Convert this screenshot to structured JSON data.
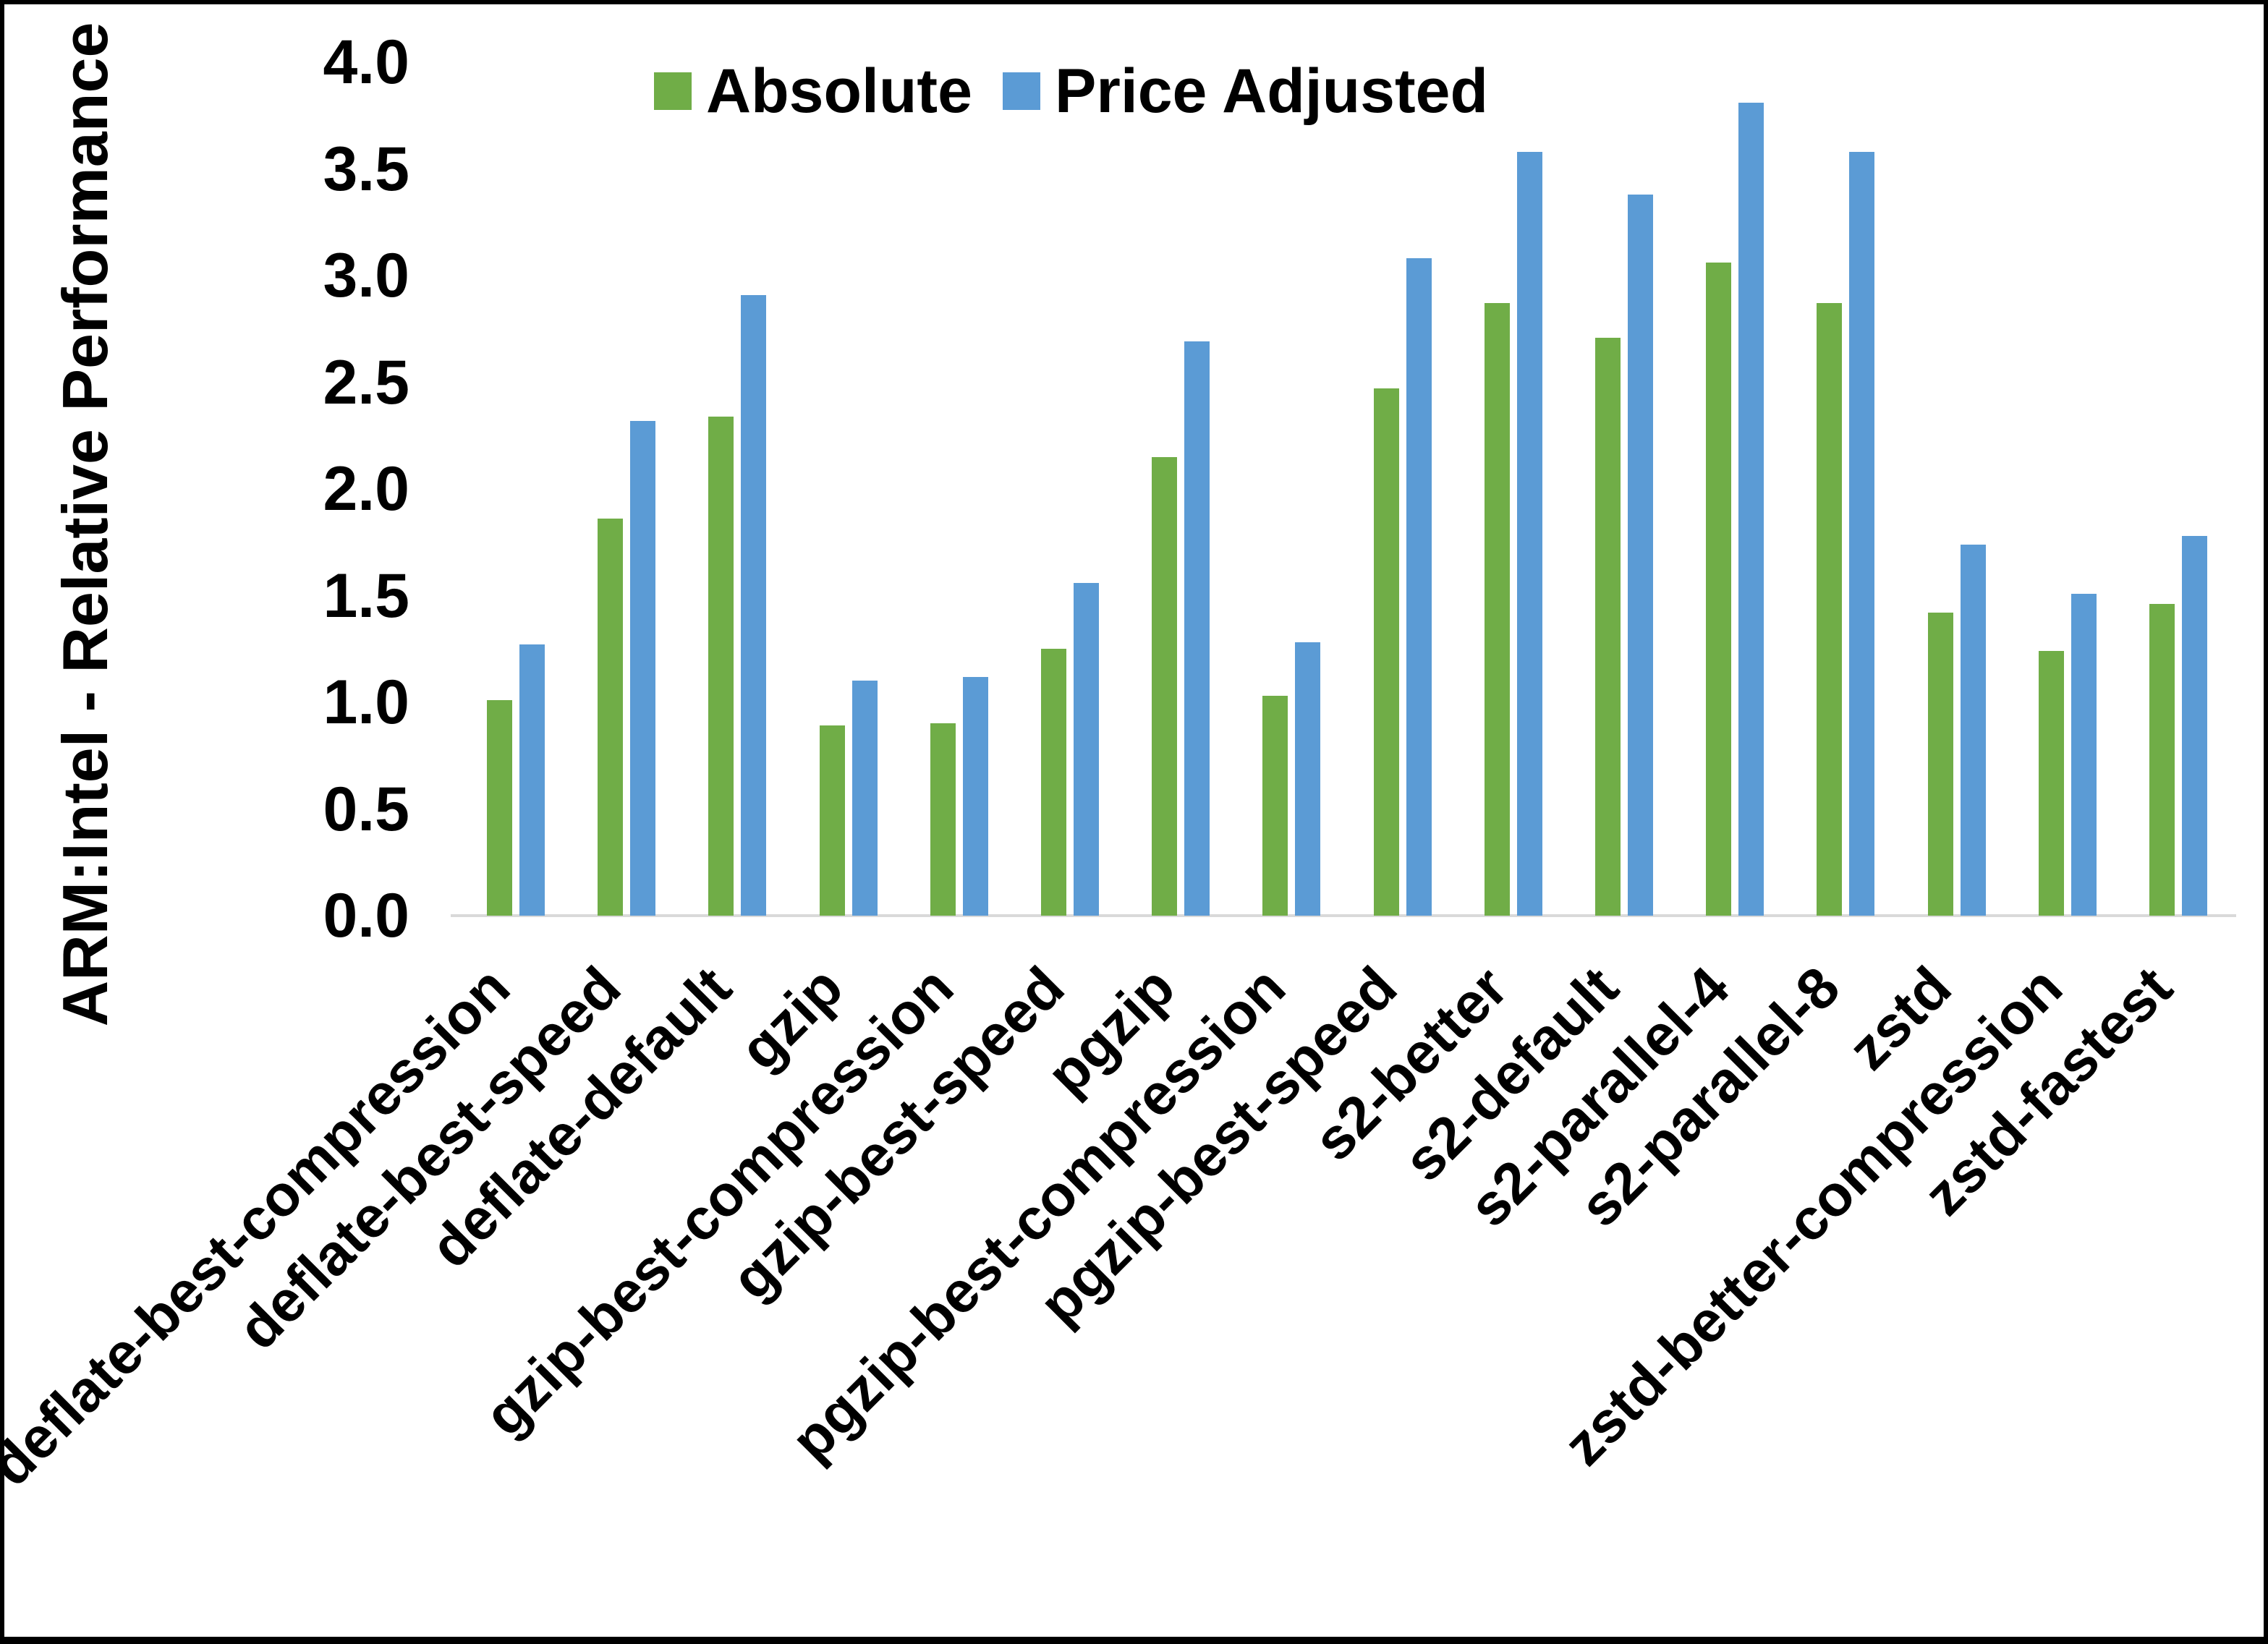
{
  "chart_data": {
    "type": "bar",
    "title": "",
    "xlabel": "",
    "ylabel": "ARM:Intel - Relative Performance",
    "ylim": [
      0.0,
      4.0
    ],
    "ytick_step": 0.5,
    "yticks": [
      "0.0",
      "0.5",
      "1.0",
      "1.5",
      "2.0",
      "2.5",
      "3.0",
      "3.5",
      "4.0"
    ],
    "grid": false,
    "legend_position": "top-center",
    "background_color": "#ffffff",
    "axis_line_color": "#d9d9d9",
    "categories": [
      "deflate-best-compression",
      "deflate-best-speed",
      "deflate-default",
      "gzip",
      "gzip-best-compression",
      "gzip-best-speed",
      "pgzip",
      "pgzip-best-compression",
      "pgzip-best-speed",
      "s2-better",
      "s2-default",
      "s2-parallel-4",
      "s2-parallel-8",
      "zstd",
      "zstd-better-compression",
      "zstd-fastest"
    ],
    "series": [
      {
        "name": "Absolute",
        "color": "#70AD47",
        "values": [
          1.01,
          1.86,
          2.34,
          0.89,
          0.9,
          1.25,
          2.15,
          1.03,
          2.47,
          2.87,
          2.71,
          3.06,
          2.87,
          1.42,
          1.24,
          1.46
        ]
      },
      {
        "name": "Price Adjusted",
        "color": "#5B9BD5",
        "values": [
          1.27,
          2.32,
          2.91,
          1.1,
          1.12,
          1.56,
          2.69,
          1.28,
          3.08,
          3.58,
          3.38,
          3.81,
          3.58,
          1.74,
          1.51,
          1.78
        ]
      }
    ]
  }
}
